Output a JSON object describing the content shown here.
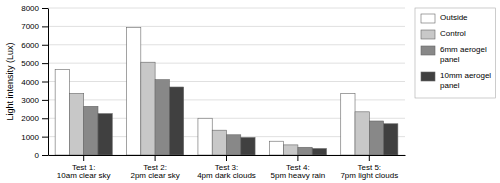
{
  "chart_data": {
    "type": "bar",
    "ylabel": "Light intensity (Lux)",
    "categories": [
      "Test 1:\n10am clear sky",
      "Test 2:\n2pm clear sky",
      "Test 3:\n4pm dark clouds",
      "Test 4:\n5pm heavy rain",
      "Test 5:\n7pm light clouds"
    ],
    "series": [
      {
        "name": "Outside",
        "color": "#ffffff",
        "values": [
          4650,
          6950,
          2000,
          750,
          3350
        ]
      },
      {
        "name": "Control",
        "color": "#c8c8c8",
        "values": [
          3350,
          5050,
          1350,
          550,
          2350
        ]
      },
      {
        "name": "6mm aerogel\npanel",
        "color": "#888888",
        "values": [
          2650,
          4100,
          1100,
          420,
          1850
        ]
      },
      {
        "name": "10mm aerogel\npanel",
        "color": "#404040",
        "values": [
          2250,
          3700,
          950,
          350,
          1700
        ]
      }
    ],
    "ylim": [
      0,
      8000
    ],
    "yticks": [
      0,
      1000,
      2000,
      3000,
      4000,
      5000,
      6000,
      7000,
      8000
    ],
    "grid": true,
    "legend": "right"
  }
}
